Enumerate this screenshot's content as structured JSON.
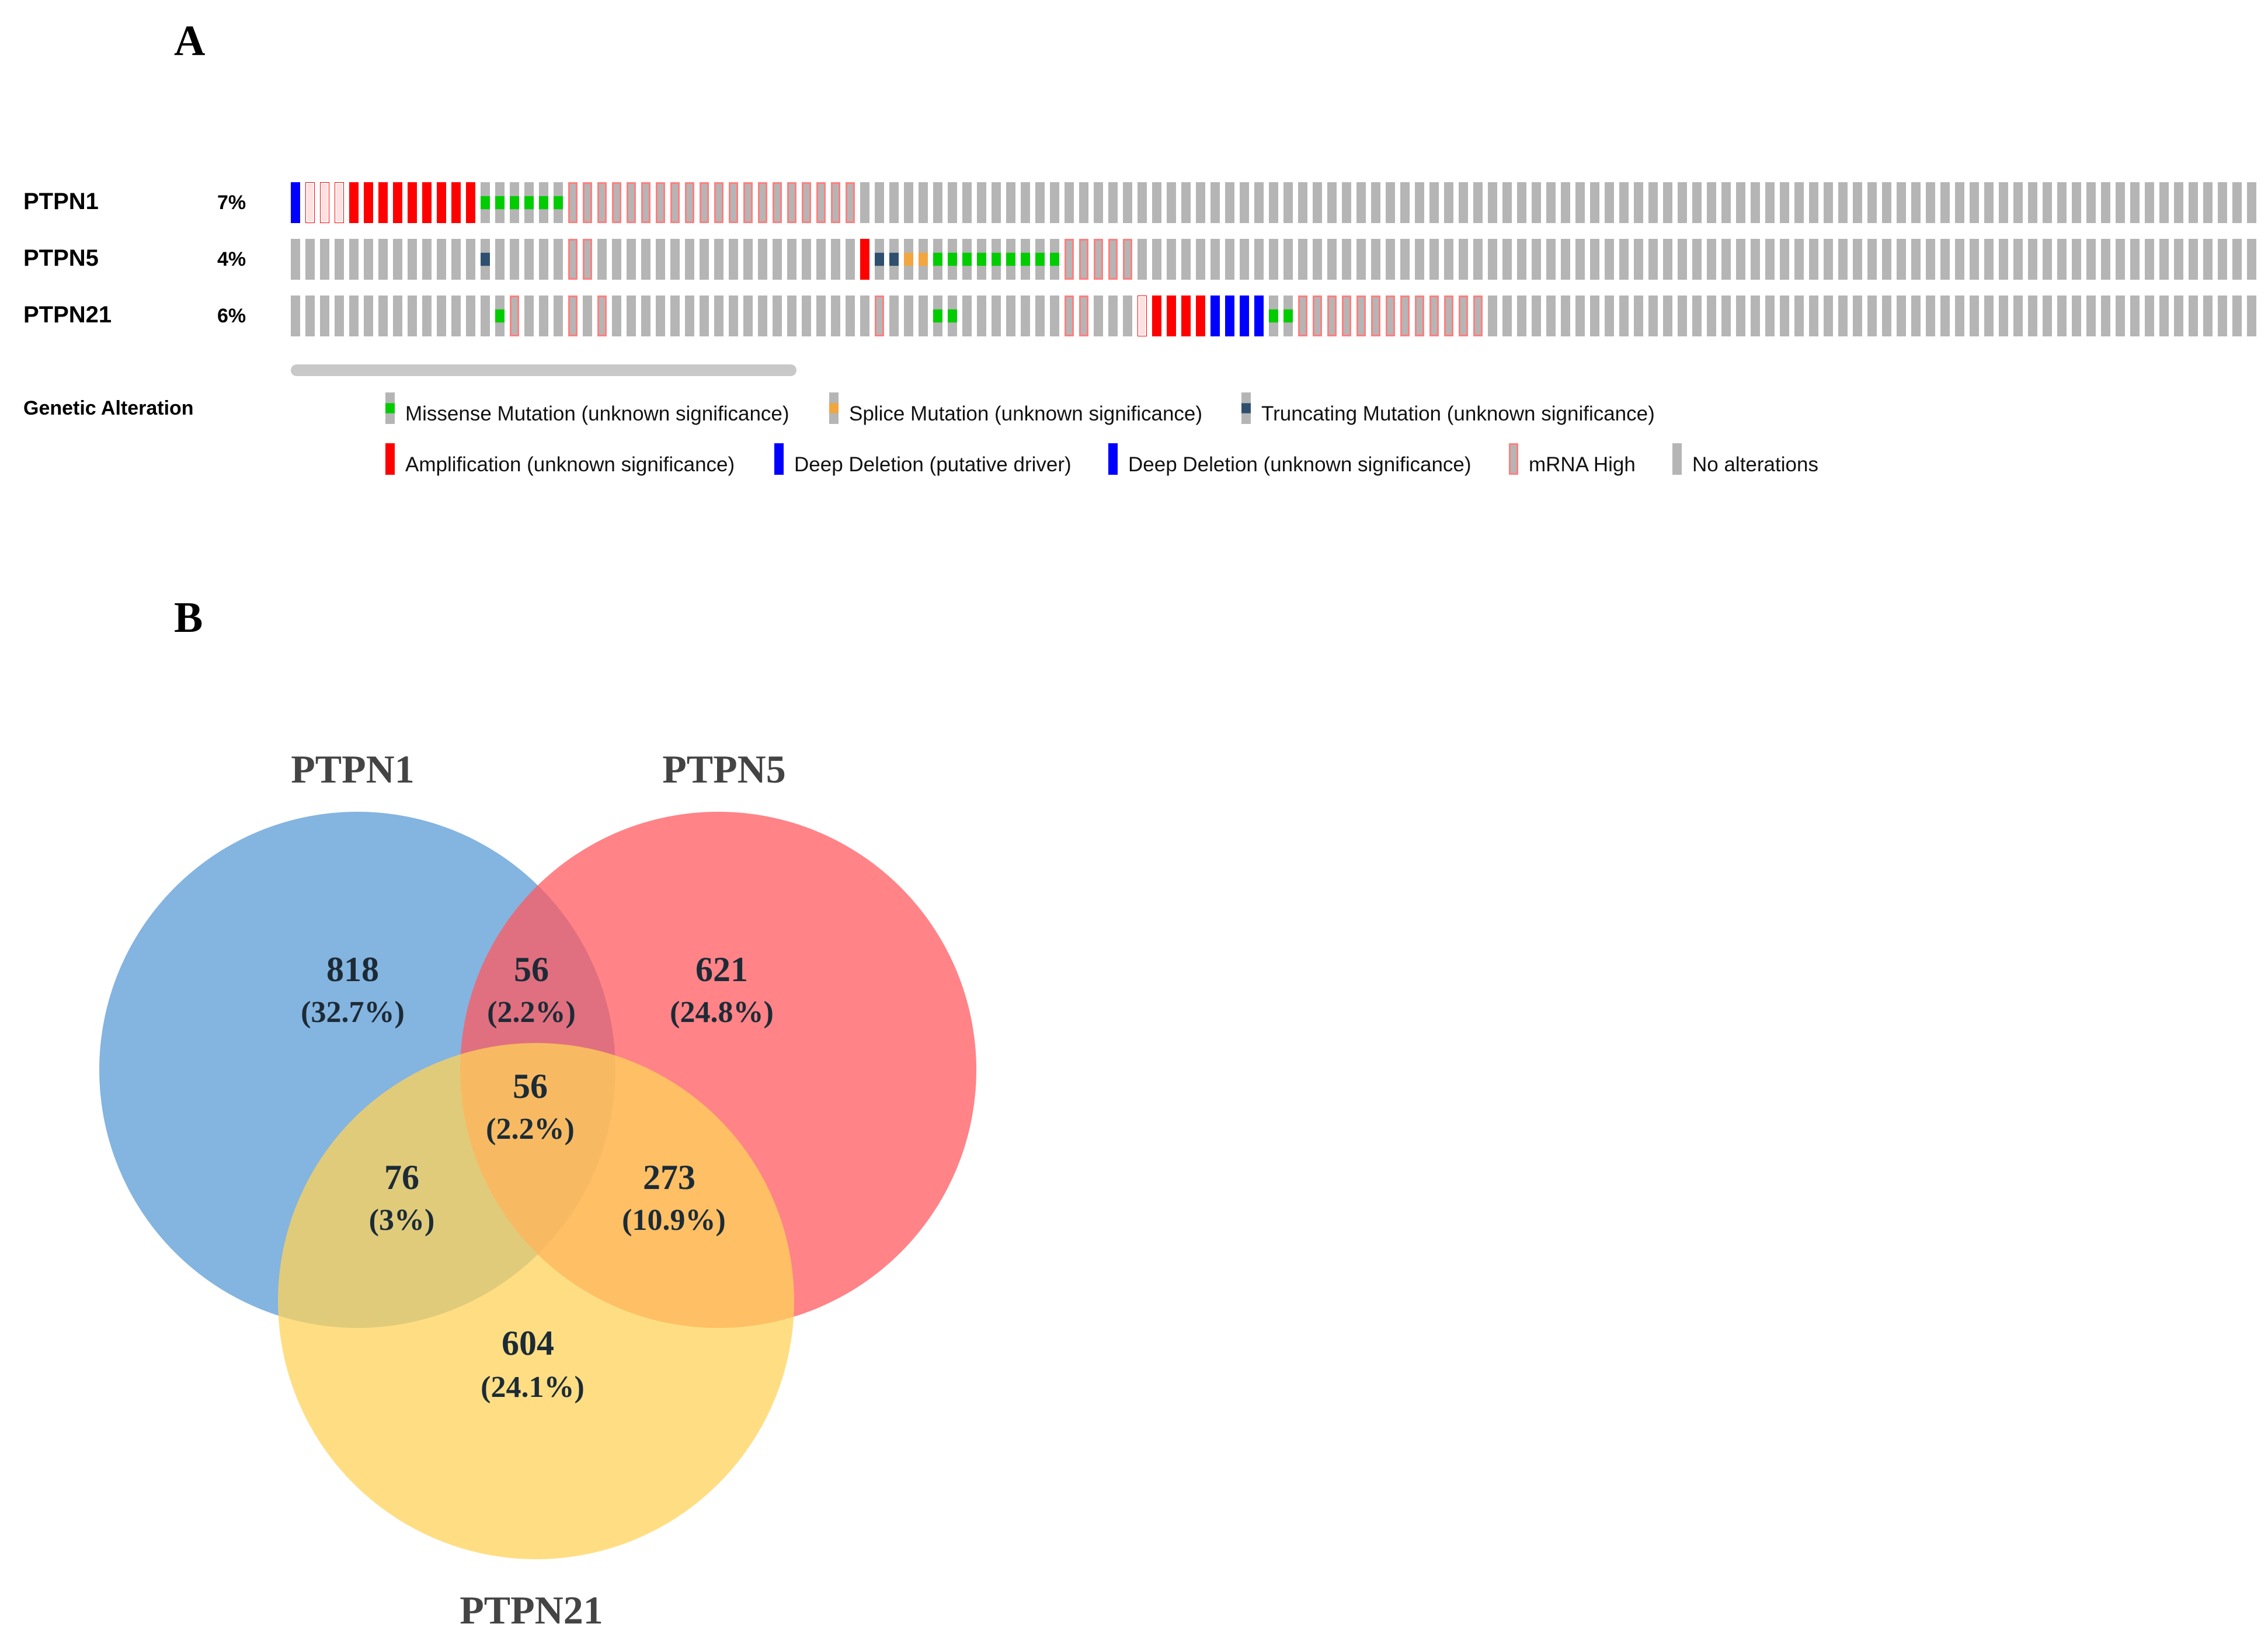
{
  "panels": {
    "a_label": "A",
    "b_label": "B"
  },
  "colors": {
    "no_alteration": "#b5b5b5",
    "amplification": "#ff0000",
    "deep_deletion": "#0000ff",
    "missense": "#00cc00",
    "splice": "#f2a640",
    "truncating": "#2f4f6f",
    "mrna_high_border": "#ff8080",
    "scrollbar": "#c8c8c8"
  },
  "oncoprint": {
    "samples": 135,
    "tracks": [
      {
        "gene": "PTPN1",
        "percent": "7%",
        "segments": [
          [
            0,
            0,
            "deep_deletion_driver"
          ],
          [
            1,
            3,
            "amp_mrna"
          ],
          [
            4,
            12,
            "amplification"
          ],
          [
            13,
            18,
            "missense"
          ],
          [
            19,
            38,
            "mrna_high"
          ]
        ]
      },
      {
        "gene": "PTPN5",
        "percent": "4%",
        "segments": [
          [
            13,
            13,
            "truncating"
          ],
          [
            19,
            20,
            "mrna_high"
          ],
          [
            39,
            39,
            "amplification"
          ],
          [
            40,
            41,
            "truncating"
          ],
          [
            42,
            43,
            "splice"
          ],
          [
            44,
            52,
            "missense"
          ],
          [
            53,
            57,
            "mrna_high"
          ]
        ]
      },
      {
        "gene": "PTPN21",
        "percent": "6%",
        "segments": [
          [
            14,
            14,
            "missense"
          ],
          [
            15,
            15,
            "mrna_high"
          ],
          [
            19,
            19,
            "mrna_high"
          ],
          [
            21,
            21,
            "mrna_high"
          ],
          [
            40,
            40,
            "mrna_high"
          ],
          [
            44,
            45,
            "missense"
          ],
          [
            53,
            54,
            "mrna_high"
          ],
          [
            58,
            58,
            "amp_mrna"
          ],
          [
            59,
            62,
            "amplification"
          ],
          [
            63,
            65,
            "deep_deletion_driver"
          ],
          [
            66,
            66,
            "deep_deletion"
          ],
          [
            67,
            68,
            "missense"
          ],
          [
            69,
            81,
            "mrna_high"
          ]
        ]
      }
    ],
    "legend": {
      "title": "Genetic Alteration",
      "items": [
        {
          "key": "missense",
          "label": "Missense Mutation (unknown significance)"
        },
        {
          "key": "splice",
          "label": "Splice Mutation (unknown significance)"
        },
        {
          "key": "truncating",
          "label": "Truncating Mutation (unknown significance)"
        },
        {
          "key": "amplification",
          "label": "Amplification (unknown significance)"
        },
        {
          "key": "deep_deletion_driver",
          "label": "Deep Deletion (putative driver)"
        },
        {
          "key": "deep_deletion",
          "label": "Deep Deletion (unknown significance)"
        },
        {
          "key": "mrna_high",
          "label": "mRNA High"
        },
        {
          "key": "none",
          "label": "No alterations"
        }
      ]
    }
  },
  "chart_data": {
    "type": "venn",
    "sets": [
      {
        "name": "PTPN1",
        "color": "#5b9bd5"
      },
      {
        "name": "PTPN5",
        "color": "#ff5a5f"
      },
      {
        "name": "PTPN21",
        "color": "#ffd35a"
      }
    ],
    "regions": [
      {
        "sets": [
          "PTPN1"
        ],
        "count": "818",
        "percent": "(32.7%)"
      },
      {
        "sets": [
          "PTPN5"
        ],
        "count": "621",
        "percent": "(24.8%)"
      },
      {
        "sets": [
          "PTPN21"
        ],
        "count": "604",
        "percent": "(24.1%)"
      },
      {
        "sets": [
          "PTPN1",
          "PTPN5"
        ],
        "count": "56",
        "percent": "(2.2%)"
      },
      {
        "sets": [
          "PTPN1",
          "PTPN21"
        ],
        "count": "76",
        "percent": "(3%)"
      },
      {
        "sets": [
          "PTPN5",
          "PTPN21"
        ],
        "count": "273",
        "percent": "(10.9%)"
      },
      {
        "sets": [
          "PTPN1",
          "PTPN5",
          "PTPN21"
        ],
        "count": "56",
        "percent": "(2.2%)"
      }
    ]
  }
}
